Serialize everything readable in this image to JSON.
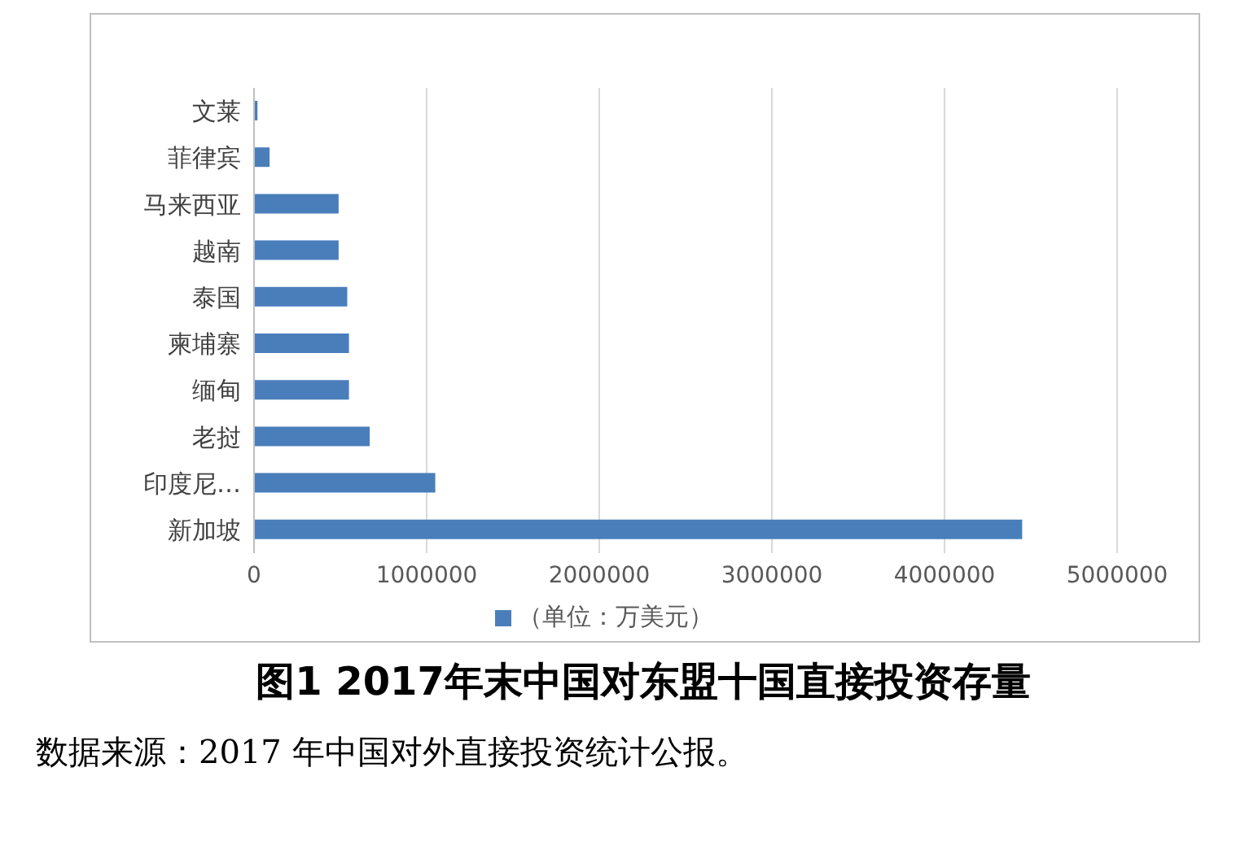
{
  "chart_data": {
    "type": "bar",
    "orientation": "horizontal",
    "title": "图1  2017年末中国对东盟十国直接投资存量",
    "annotations": [
      "数据来源：2017 年中国对外直接投资统计公报。"
    ],
    "categories": [
      "文莱",
      "菲律宾",
      "马来西亚",
      "越南",
      "泰国",
      "柬埔寨",
      "缅甸",
      "老挝",
      "印度尼…",
      "新加坡"
    ],
    "series": [
      {
        "name": "（单位：万美元）",
        "color": "#4a7ebb",
        "values": [
          20000,
          90000,
          490000,
          490000,
          540000,
          550000,
          550000,
          670000,
          1050000,
          4450000
        ]
      }
    ],
    "xlim": [
      0,
      5000000
    ],
    "xticks": [
      0,
      1000000,
      2000000,
      3000000,
      4000000,
      5000000
    ],
    "grid": "x",
    "legend": "bottom"
  }
}
